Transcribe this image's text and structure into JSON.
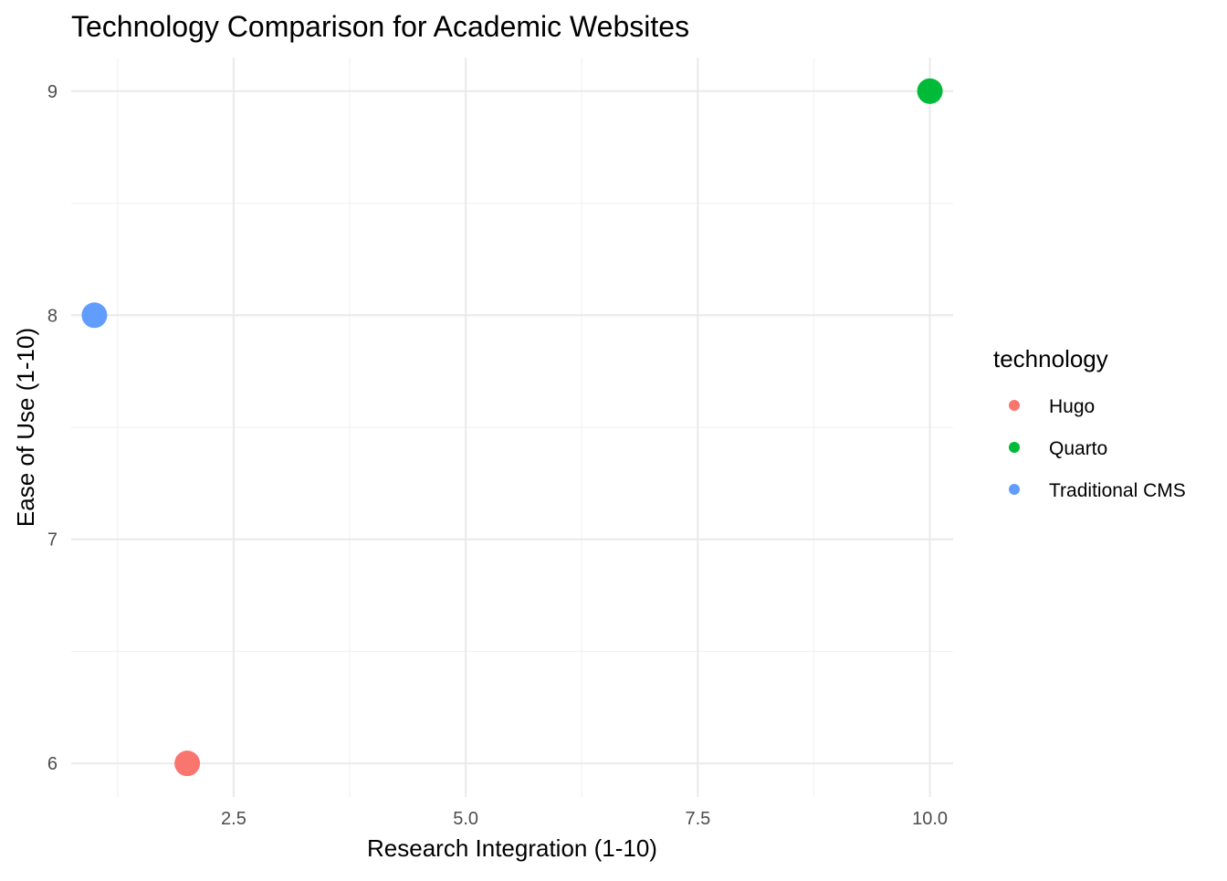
{
  "chart_data": {
    "type": "scatter",
    "title": "Technology Comparison for Academic Websites",
    "xlabel": "Research Integration (1-10)",
    "ylabel": "Ease of Use (1-10)",
    "xlim": [
      0.75,
      10.25
    ],
    "ylim": [
      5.85,
      9.15
    ],
    "x_ticks": [
      2.5,
      5.0,
      7.5,
      10.0
    ],
    "x_tick_labels": [
      "2.5",
      "5.0",
      "7.5",
      "10.0"
    ],
    "x_minor_ticks": [
      1.25,
      3.75,
      6.25,
      8.75
    ],
    "y_ticks": [
      6,
      7,
      8,
      9
    ],
    "y_tick_labels": [
      "6",
      "7",
      "8",
      "9"
    ],
    "y_minor_ticks": [
      6.5,
      7.5,
      8.5
    ],
    "grid": true,
    "legend": {
      "title": "technology",
      "placement": "right",
      "entries": [
        "Hugo",
        "Quarto",
        "Traditional CMS"
      ]
    },
    "colors": {
      "Hugo": "#F8766D",
      "Quarto": "#00BA38",
      "Traditional CMS": "#619CFF"
    },
    "points": [
      {
        "technology": "Hugo",
        "x": 2,
        "y": 6
      },
      {
        "technology": "Quarto",
        "x": 10,
        "y": 9
      },
      {
        "technology": "Traditional CMS",
        "x": 1,
        "y": 8
      }
    ]
  }
}
